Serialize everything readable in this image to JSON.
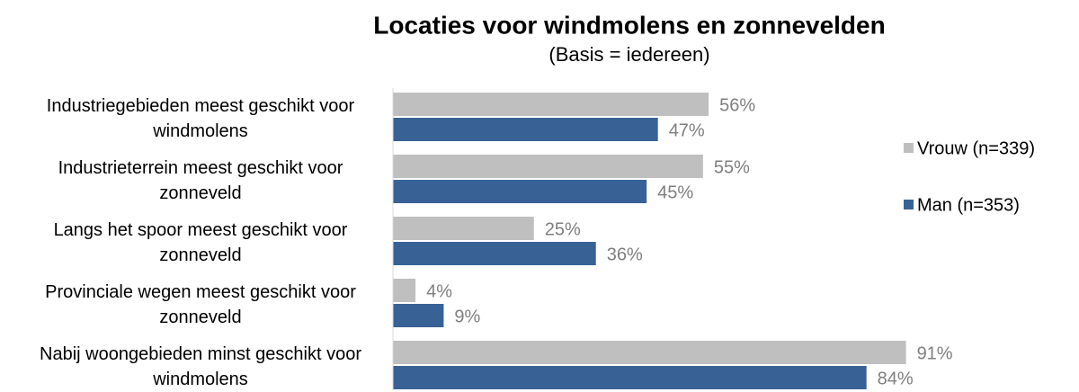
{
  "chart_data": {
    "type": "hbar",
    "title": "Locaties voor windmolens en zonnevelden",
    "subtitle": "(Basis = iedereen)",
    "categories": [
      "Industriegebieden meest geschikt voor windmolens",
      "Industrieterrein meest geschikt voor zonneveld",
      "Langs het spoor meest geschikt voor zonneveld",
      "Provinciale wegen meest geschikt voor zonneveld",
      "Nabij woongebieden minst geschikt voor windmolens"
    ],
    "series": [
      {
        "name": "Vrouw (n=339)",
        "color": "#bfbfbf",
        "values": [
          56,
          55,
          25,
          4,
          91
        ],
        "value_labels": [
          "56%",
          "55%",
          "25%",
          "4%",
          "91%"
        ]
      },
      {
        "name": "Man (n=353)",
        "color": "#386295",
        "values": [
          47,
          45,
          36,
          9,
          84
        ],
        "value_labels": [
          "47%",
          "45%",
          "36%",
          "9%",
          "84%"
        ]
      }
    ],
    "xlim": [
      0,
      100
    ],
    "legend": "right"
  }
}
